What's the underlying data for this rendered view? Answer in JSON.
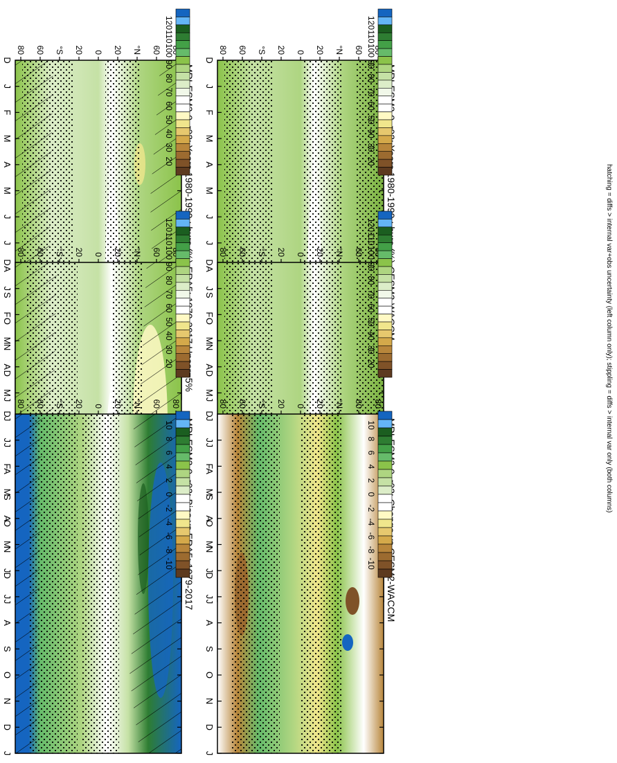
{
  "footnote": "hatching = diffs > internal var+obs uncertainty (left column only); stippling = diffs > internal var only (both columns)",
  "lat_ticks": [
    "80",
    "60",
    "°N",
    "20",
    "0",
    "20",
    "°S",
    "60",
    "80"
  ],
  "month_ticks": [
    "D",
    "J",
    "F",
    "M",
    "A",
    "M",
    "J",
    "J",
    "A",
    "S",
    "O",
    "N",
    "D",
    "J"
  ],
  "colorbars": {
    "abs": {
      "labels": [
        "120",
        "110",
        "100",
        "90",
        "80",
        "70",
        "60",
        "50",
        "40",
        "30",
        "20"
      ],
      "colors": [
        "#1565c0",
        "#64b5f6",
        "#1b5e20",
        "#2e7d32",
        "#43a047",
        "#66bb6a",
        "#8bc34a",
        "#aed581",
        "#c5e1a5",
        "#dcedc8",
        "#f1f8e9",
        "#ffffff",
        "#ffffff",
        "#fff9c4",
        "#f0e68c",
        "#e6c86e",
        "#d4a94a",
        "#b8863b",
        "#9c6b30",
        "#7f5228",
        "#5d3a1f"
      ]
    },
    "diff": {
      "labels": [
        "10",
        "8",
        "6",
        "4",
        "2",
        "0",
        "-2",
        "-4",
        "-6",
        "-8",
        "-10"
      ],
      "colors": [
        "#1565c0",
        "#64b5f6",
        "#1b5e20",
        "#2e7d32",
        "#43a047",
        "#66bb6a",
        "#8bc34a",
        "#aed581",
        "#c5e1a5",
        "#dcedc8",
        "#ffffff",
        "#ffffff",
        "#fff9c4",
        "#f0e68c",
        "#e6c86e",
        "#d4a94a",
        "#b8863b",
        "#9c6b30",
        "#7f5228",
        "#5d3a1f"
      ]
    }
  },
  "chart_data": [
    {
      "type": "heatmap",
      "title": "MRI-ESM2-0_r02: Years 1980-1999 : hurs (%)",
      "position": "left-top",
      "colorbar": "abs",
      "hatching": true,
      "stippling": true
    },
    {
      "type": "heatmap",
      "title": "MRI-ESM2-0_r02: Years 1980-1999 : hurs (%)",
      "position": "right-top",
      "colorbar": "abs",
      "hatching": false,
      "stippling": true
    },
    {
      "type": "heatmap",
      "title": "ERA5: 1979-2017 Uncer=5%",
      "position": "left-middle",
      "colorbar": "abs",
      "hatching": true,
      "stippling": true
    },
    {
      "type": "heatmap",
      "title": "CESM2-WACCM",
      "position": "right-middle",
      "colorbar": "abs",
      "hatching": false,
      "stippling": true
    },
    {
      "type": "heatmap",
      "title": "MRI-ESM2-0_r02: Bias vs ERA5: 1979-2017",
      "position": "left-bottom",
      "colorbar": "diff",
      "hatching": true,
      "stippling": true
    },
    {
      "type": "heatmap",
      "title": "MRI-ESM2-0_r02: Change vs CESM2-WACCM",
      "position": "right-bottom",
      "colorbar": "diff",
      "hatching": false,
      "stippling": true
    }
  ]
}
